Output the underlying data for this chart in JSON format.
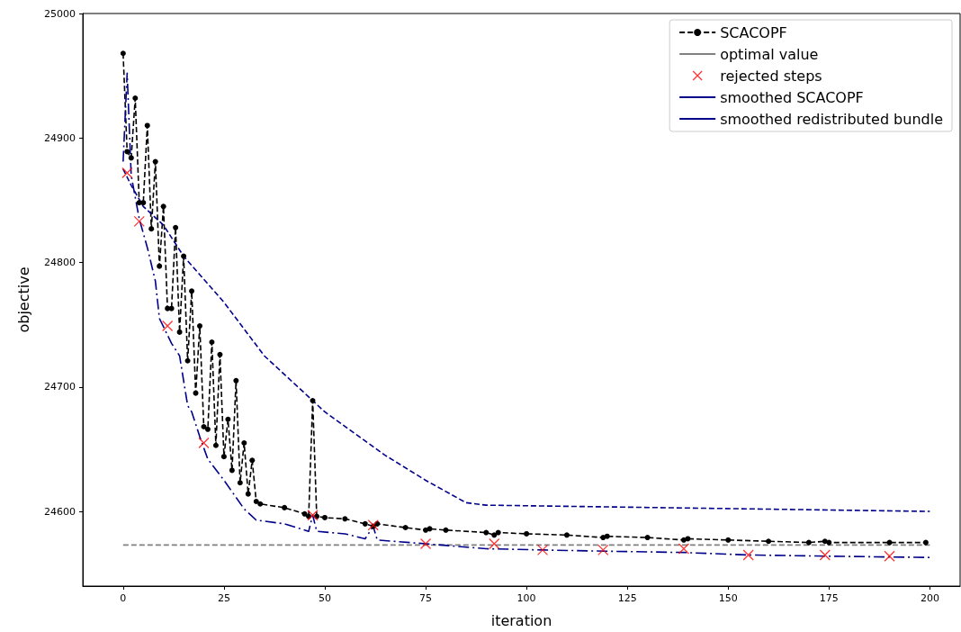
{
  "chart_data": {
    "type": "line",
    "xlabel": "iteration",
    "ylabel": "objective",
    "xlim": [
      -10,
      207.5
    ],
    "xticks": [
      0,
      25,
      50,
      75,
      100,
      125,
      150,
      175,
      200
    ],
    "ylim": [
      24540,
      25000
    ],
    "yticks": [
      24600,
      24700,
      24800,
      24900,
      25000
    ],
    "grid": false,
    "legend": "top right",
    "series": [
      {
        "name": "SCACOPF",
        "color": "#000000",
        "marker": "circle",
        "line_style": "dashed",
        "x": [
          0,
          1,
          2,
          3,
          4,
          5,
          6,
          7,
          8,
          9,
          10,
          11,
          12,
          13,
          14,
          15,
          16,
          17,
          18,
          19,
          20,
          21,
          22,
          23,
          24,
          25,
          26,
          27,
          28,
          29,
          30,
          31,
          32,
          33,
          34,
          40,
          45,
          46,
          47,
          48,
          50,
          55,
          60,
          62,
          63,
          70,
          75,
          76,
          80,
          90,
          92,
          93,
          100,
          110,
          119,
          120,
          130,
          139,
          140,
          150,
          160,
          170,
          174,
          175,
          190,
          199
        ],
        "values": [
          24968,
          24889,
          24884,
          24932,
          24848,
          24848,
          24910,
          24827,
          24881,
          24797,
          24845,
          24763,
          24763,
          24828,
          24744,
          24805,
          24721,
          24777,
          24695,
          24749,
          24668,
          24666,
          24736,
          24653,
          24726,
          24644,
          24674,
          24633,
          24705,
          24623,
          24655,
          24614,
          24641,
          24608,
          24606,
          24603,
          24598,
          24596,
          24689,
          24596,
          24595,
          24594,
          24590,
          24588,
          24590,
          24587,
          24585,
          24586,
          24585,
          24583,
          24581,
          24583,
          24582,
          24581,
          24579,
          24580,
          24579,
          24577,
          24578,
          24577,
          24576,
          24575,
          24576,
          24575,
          24575,
          24575
        ]
      },
      {
        "name": "optimal value",
        "color": "#808080",
        "marker": "none",
        "line_style": "dashed",
        "x": [
          0,
          200
        ],
        "values": [
          24573,
          24573
        ]
      },
      {
        "name": "rejected steps",
        "type": "scatter",
        "color": "#ff0000",
        "marker": "cross",
        "x": [
          1,
          4,
          11,
          20,
          47,
          62,
          75,
          92,
          104,
          119,
          139,
          155,
          174,
          190
        ],
        "values": [
          24872,
          24833,
          24749,
          24655,
          24597,
          24589,
          24574,
          24574,
          24569,
          24569,
          24570,
          24565,
          24565,
          24564
        ]
      },
      {
        "name": "smoothed SCACOPF",
        "color": "#00008b",
        "marker": "none",
        "line_style": "dashdot",
        "x": [
          0,
          1,
          2,
          4,
          6,
          8,
          9,
          12,
          14,
          16,
          17,
          19,
          21,
          25,
          30,
          33,
          40,
          46,
          47,
          48,
          55,
          60,
          62,
          63,
          75,
          90,
          104,
          120,
          139,
          155,
          175,
          200
        ],
        "values": [
          24881,
          24952,
          24870,
          24835,
          24812,
          24785,
          24755,
          24735,
          24725,
          24685,
          24680,
          24660,
          24642,
          24625,
          24602,
          24593,
          24590,
          24584,
          24597,
          24584,
          24582,
          24578,
          24588,
          24577,
          24574,
          24570,
          24569,
          24568,
          24567,
          24565,
          24564,
          24563
        ]
      },
      {
        "name": "smoothed redistributed bundle",
        "color": "#00008b",
        "marker": "none",
        "line_style": "dashed",
        "x": [
          0,
          2,
          5,
          10,
          15,
          25,
          35,
          50,
          65,
          75,
          85,
          90,
          200
        ],
        "values": [
          24875,
          24862,
          24845,
          24830,
          24805,
          24768,
          24725,
          24680,
          24645,
          24625,
          24607,
          24605,
          24600
        ]
      }
    ]
  }
}
